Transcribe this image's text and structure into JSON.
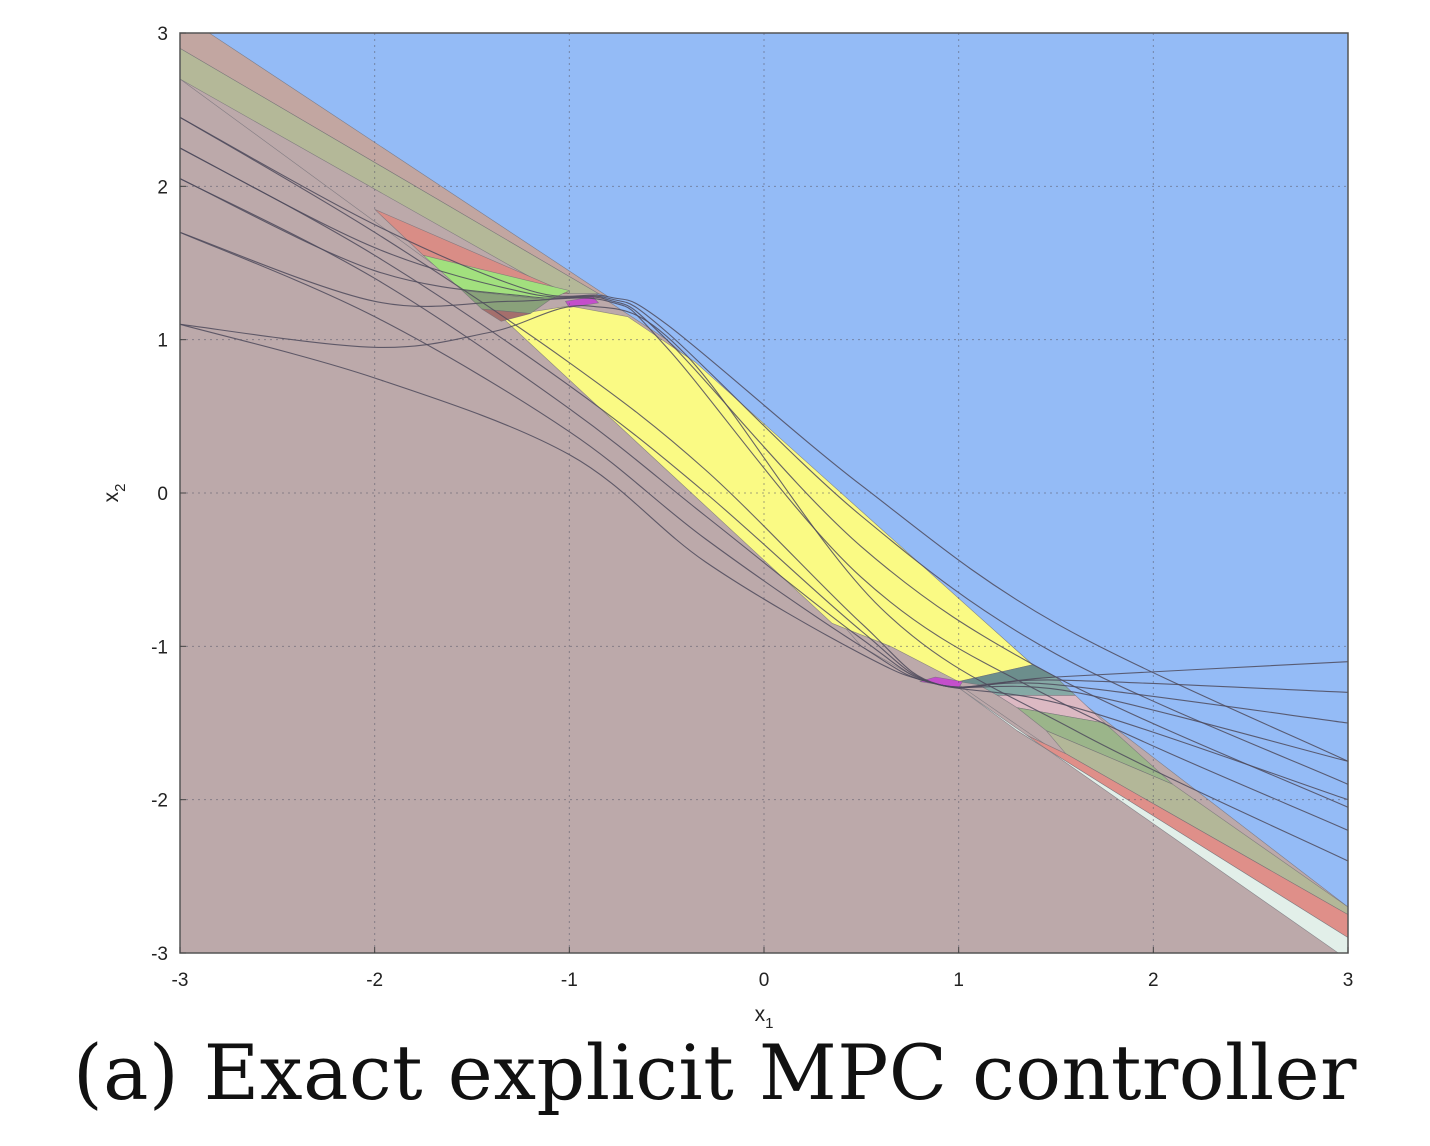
{
  "caption": "(a) Exact explicit MPC controller",
  "chart_data": {
    "type": "region-partition",
    "title": "",
    "xlabel": "x",
    "xlabel_sub": "1",
    "ylabel": "x",
    "ylabel_sub": "2",
    "xlim": [
      -3,
      3
    ],
    "ylim": [
      -3,
      3
    ],
    "xticks": [
      -3,
      -2,
      -1,
      0,
      1,
      2,
      3
    ],
    "yticks": [
      -3,
      -2,
      -1,
      0,
      1,
      2,
      3
    ],
    "xtick_labels": [
      "-3",
      "-2",
      "-1",
      "0",
      "1",
      "2",
      "3"
    ],
    "ytick_labels": [
      "-3",
      "-2",
      "-1",
      "0",
      "1",
      "2",
      "3"
    ],
    "grid": true,
    "regions": [
      {
        "name": "upper-saturated",
        "color": "#94bbf6",
        "points": [
          [
            -3,
            3
          ],
          [
            3,
            3
          ],
          [
            3,
            -2.7
          ],
          [
            1.38,
            -1.12
          ],
          [
            -0.5,
            1.0
          ],
          [
            -0.8,
            1.25
          ],
          [
            -3,
            3
          ]
        ]
      },
      {
        "name": "lower-saturated",
        "color": "#bca9aa",
        "points": [
          [
            -3,
            2.7
          ],
          [
            -1.3,
            1.12
          ],
          [
            -1.0,
            1.22
          ],
          [
            0.5,
            -1.0
          ],
          [
            0.8,
            -1.22
          ],
          [
            1.0,
            -1.25
          ],
          [
            3,
            -3
          ],
          [
            -3,
            -3
          ]
        ]
      },
      {
        "name": "unconstrained",
        "color": "#fafa84",
        "points": [
          [
            -1.35,
            1.15
          ],
          [
            -1.0,
            1.22
          ],
          [
            -0.7,
            1.15
          ],
          [
            -0.35,
            0.85
          ],
          [
            1.38,
            -1.12
          ],
          [
            1.0,
            -1.23
          ],
          [
            0.65,
            -1.0
          ],
          [
            0.35,
            -0.85
          ],
          [
            -1.35,
            1.15
          ]
        ]
      },
      {
        "name": "upper-band-brown",
        "color": "#c2a6a1",
        "points": [
          [
            -3,
            3
          ],
          [
            -2.85,
            3
          ],
          [
            -0.8,
            1.28
          ],
          [
            -0.85,
            1.3
          ],
          [
            -3,
            2.9
          ]
        ]
      },
      {
        "name": "upper-band-olive",
        "color": "#b4b898",
        "points": [
          [
            -3,
            2.9
          ],
          [
            -0.85,
            1.3
          ],
          [
            -1.05,
            1.3
          ],
          [
            -3,
            2.7
          ]
        ]
      },
      {
        "name": "upper-band-red",
        "color": "#d98d86",
        "points": [
          [
            -2.0,
            1.85
          ],
          [
            -1.0,
            1.3
          ],
          [
            -1.3,
            1.3
          ],
          [
            -1.75,
            1.55
          ]
        ]
      },
      {
        "name": "upper-band-green",
        "color": "#a2e07e",
        "points": [
          [
            -1.75,
            1.55
          ],
          [
            -1.0,
            1.32
          ],
          [
            -1.1,
            1.26
          ],
          [
            -1.55,
            1.32
          ]
        ]
      },
      {
        "name": "upper-band-darkgreen",
        "color": "#89a17a",
        "points": [
          [
            -1.55,
            1.32
          ],
          [
            -1.1,
            1.26
          ],
          [
            -1.2,
            1.17
          ],
          [
            -1.45,
            1.2
          ]
        ]
      },
      {
        "name": "upper-band-maroon",
        "color": "#a56f6c",
        "points": [
          [
            -1.45,
            1.2
          ],
          [
            -1.2,
            1.17
          ],
          [
            -1.35,
            1.12
          ]
        ]
      },
      {
        "name": "lower-band-darkteal",
        "color": "#6c8e8c",
        "points": [
          [
            1.0,
            -1.23
          ],
          [
            1.38,
            -1.12
          ],
          [
            1.5,
            -1.2
          ],
          [
            1.1,
            -1.25
          ]
        ]
      },
      {
        "name": "lower-band-teal",
        "color": "#85a9a5",
        "points": [
          [
            1.1,
            -1.25
          ],
          [
            1.5,
            -1.2
          ],
          [
            1.6,
            -1.32
          ],
          [
            1.2,
            -1.32
          ]
        ]
      },
      {
        "name": "lower-band-pink",
        "color": "#dcb9c3",
        "points": [
          [
            1.2,
            -1.32
          ],
          [
            1.6,
            -1.32
          ],
          [
            1.75,
            -1.5
          ],
          [
            1.3,
            -1.4
          ]
        ]
      },
      {
        "name": "lower-band-green",
        "color": "#9bb58a",
        "points": [
          [
            1.3,
            -1.4
          ],
          [
            1.75,
            -1.5
          ],
          [
            2.1,
            -1.9
          ],
          [
            1.45,
            -1.55
          ]
        ]
      },
      {
        "name": "lower-band-olive",
        "color": "#b3b798",
        "points": [
          [
            1.45,
            -1.55
          ],
          [
            2.1,
            -1.9
          ],
          [
            3,
            -2.7
          ],
          [
            3,
            -2.75
          ],
          [
            1.55,
            -1.7
          ]
        ]
      },
      {
        "name": "lower-band-red",
        "color": "#df8f89",
        "points": [
          [
            1.55,
            -1.7
          ],
          [
            3,
            -2.75
          ],
          [
            3,
            -2.9
          ],
          [
            1.3,
            -1.55
          ]
        ]
      },
      {
        "name": "lower-band-mint",
        "color": "#e2efe9",
        "points": [
          [
            1.3,
            -1.55
          ],
          [
            3,
            -2.9
          ],
          [
            3,
            -3
          ],
          [
            2.95,
            -3
          ],
          [
            1.0,
            -1.27
          ]
        ]
      },
      {
        "name": "upper-corner-magenta",
        "color": "#c44fcb",
        "points": [
          [
            -1.02,
            1.25
          ],
          [
            -0.88,
            1.28
          ],
          [
            -0.85,
            1.24
          ],
          [
            -1.0,
            1.21
          ]
        ]
      },
      {
        "name": "lower-corner-magenta",
        "color": "#c44fcb",
        "points": [
          [
            0.8,
            -1.23
          ],
          [
            1.0,
            -1.27
          ],
          [
            1.02,
            -1.23
          ],
          [
            0.88,
            -1.2
          ]
        ]
      }
    ],
    "boundary_curves": [
      {
        "x": [
          -3,
          -2.0,
          -1.2,
          -0.8,
          -0.5,
          0.5,
          1.5,
          3
        ],
        "y": [
          2.45,
          1.75,
          1.32,
          1.28,
          1.1,
          0.05,
          -0.85,
          -1.75
        ]
      },
      {
        "x": [
          -3,
          -2.0,
          -1.2,
          -0.8,
          -0.5,
          0.5,
          1.5,
          3
        ],
        "y": [
          2.25,
          1.6,
          1.3,
          1.27,
          1.05,
          -0.15,
          -1.05,
          -1.9
        ]
      },
      {
        "x": [
          -3,
          -2.0,
          -1.2,
          -0.8,
          -0.5,
          0.5,
          1.5,
          3
        ],
        "y": [
          2.05,
          1.45,
          1.28,
          1.26,
          1.0,
          -0.35,
          -1.2,
          -2.05
        ]
      },
      {
        "x": [
          -3,
          -2.0,
          -1.3,
          -0.8,
          -0.5,
          0.5,
          1.5,
          3
        ],
        "y": [
          1.7,
          1.25,
          1.25,
          1.25,
          0.95,
          -0.55,
          -1.35,
          -2.2
        ]
      },
      {
        "x": [
          -3,
          -2.0,
          -1.4,
          -0.9,
          -0.4,
          0.6,
          1.6,
          3
        ],
        "y": [
          1.1,
          0.95,
          1.05,
          1.22,
          0.9,
          -0.75,
          -1.55,
          -2.4
        ]
      },
      {
        "x": [
          -3,
          -2.0,
          -1.0,
          -0.3,
          0.5,
          0.9,
          1.5,
          3
        ],
        "y": [
          2.45,
          1.7,
          0.85,
          0.15,
          -0.85,
          -1.25,
          -1.2,
          -1.1
        ]
      },
      {
        "x": [
          -3,
          -2.0,
          -1.0,
          -0.3,
          0.5,
          0.9,
          1.5,
          3
        ],
        "y": [
          2.25,
          1.55,
          0.7,
          0.0,
          -0.9,
          -1.25,
          -1.22,
          -1.3
        ]
      },
      {
        "x": [
          -3,
          -2.0,
          -1.0,
          -0.3,
          0.5,
          0.9,
          1.5,
          3
        ],
        "y": [
          2.05,
          1.4,
          0.55,
          -0.15,
          -0.95,
          -1.25,
          -1.25,
          -1.5
        ]
      },
      {
        "x": [
          -3,
          -2.0,
          -1.0,
          -0.3,
          0.5,
          0.9,
          1.6,
          3
        ],
        "y": [
          1.7,
          1.15,
          0.4,
          -0.3,
          -1.0,
          -1.25,
          -1.3,
          -1.75
        ]
      },
      {
        "x": [
          -3,
          -2.0,
          -1.0,
          -0.3,
          0.5,
          0.9,
          1.6,
          3
        ],
        "y": [
          1.1,
          0.75,
          0.25,
          -0.45,
          -1.05,
          -1.25,
          -1.4,
          -2.0
        ]
      }
    ]
  }
}
